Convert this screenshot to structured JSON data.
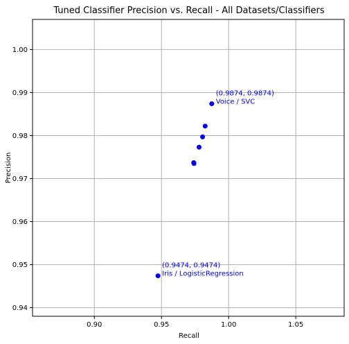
{
  "chart_data": {
    "type": "scatter",
    "title": "Tuned Classifier Precision vs. Recall - All Datasets/Classifiers",
    "xlabel": "Recall",
    "ylabel": "Precision",
    "xlim": [
      0.854,
      1.086
    ],
    "ylim": [
      0.938,
      1.007
    ],
    "xticks": [
      0.9,
      0.95,
      1.0,
      1.05
    ],
    "xtick_labels": [
      "0.90",
      "0.95",
      "1.00",
      "1.05"
    ],
    "yticks": [
      0.94,
      0.95,
      0.96,
      0.97,
      0.98,
      0.99,
      1.0
    ],
    "ytick_labels": [
      "0.94",
      "0.95",
      "0.96",
      "0.97",
      "0.98",
      "0.99",
      "1.00"
    ],
    "grid": true,
    "marker_color": "#0000ff",
    "points": [
      {
        "x": 0.9874,
        "y": 0.9874
      },
      {
        "x": 0.9825,
        "y": 0.9822
      },
      {
        "x": 0.9806,
        "y": 0.9797
      },
      {
        "x": 0.978,
        "y": 0.9773
      },
      {
        "x": 0.974,
        "y": 0.9737
      },
      {
        "x": 0.9742,
        "y": 0.9735
      },
      {
        "x": 0.9474,
        "y": 0.9474
      }
    ],
    "annotations": [
      {
        "x": 0.9874,
        "y": 0.9874,
        "lines": [
          "(0.9874, 0.9874)",
          "Voice / SVC"
        ]
      },
      {
        "x": 0.9474,
        "y": 0.9474,
        "lines": [
          "(0.9474, 0.9474)",
          "Iris / LogisticRegression"
        ]
      }
    ]
  }
}
